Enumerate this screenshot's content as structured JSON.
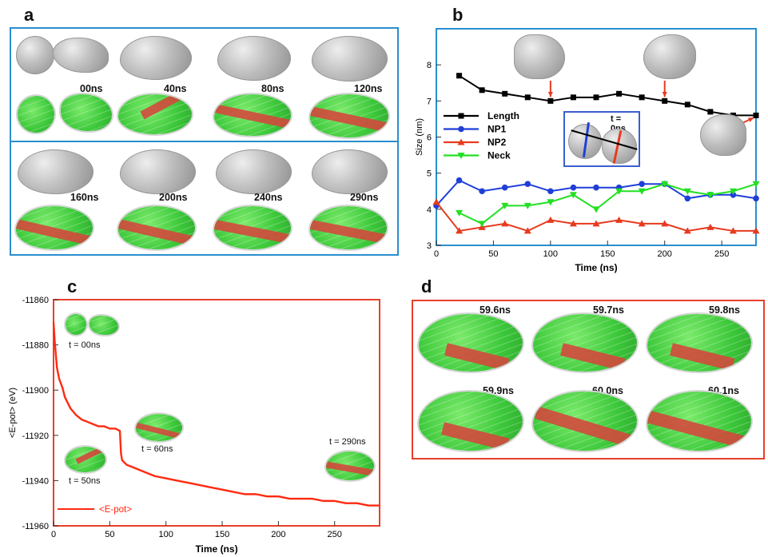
{
  "panels": {
    "a": {
      "label": "a",
      "times_row1": [
        "00ns",
        "40ns",
        "80ns",
        "120ns"
      ],
      "times_row2": [
        "160ns",
        "200ns",
        "240ns",
        "290ns"
      ]
    },
    "b": {
      "label": "b",
      "inset_label": "t = 0ns"
    },
    "c": {
      "label": "c",
      "snapshots": [
        "t = 00ns",
        "t = 50ns",
        "t = 60ns",
        "t = 290ns"
      ]
    },
    "d": {
      "label": "d",
      "times": [
        "59.6ns",
        "59.7ns",
        "59.8ns",
        "59.9ns",
        "60.0ns",
        "60.1ns"
      ]
    }
  },
  "colors": {
    "frame_blue": "#2a8ecf",
    "frame_red": "#e8402a",
    "length": "#000000",
    "np1": "#1f3fd8",
    "np2": "#e83a1e",
    "neck": "#22e022",
    "epot": "#ff2a10",
    "atom_green": "#3cc83a",
    "atom_gray": "#b8b8b8",
    "stacking_fault_red": "#d6463c"
  },
  "chart_data": [
    {
      "type": "line",
      "panel": "b",
      "xlabel": "Time (ns)",
      "ylabel": "Size (nm)",
      "xlim": [
        0,
        280
      ],
      "ylim": [
        3,
        9
      ],
      "xticks": [
        0,
        50,
        100,
        150,
        200,
        250
      ],
      "yticks": [
        3,
        4,
        5,
        6,
        7,
        8
      ],
      "legend_position": "middle-left",
      "series": [
        {
          "name": "Length",
          "color": "#000000",
          "marker": "square",
          "x": [
            20,
            40,
            60,
            80,
            100,
            120,
            140,
            160,
            180,
            200,
            220,
            240,
            260,
            280
          ],
          "y": [
            7.7,
            7.3,
            7.2,
            7.1,
            7.0,
            7.1,
            7.1,
            7.2,
            7.1,
            7.0,
            6.9,
            6.7,
            6.6,
            6.6
          ]
        },
        {
          "name": "NP1",
          "color": "#1f3fd8",
          "marker": "circle",
          "x": [
            0,
            20,
            40,
            60,
            80,
            100,
            120,
            140,
            160,
            180,
            200,
            220,
            240,
            260,
            280
          ],
          "y": [
            4.1,
            4.8,
            4.5,
            4.6,
            4.7,
            4.5,
            4.6,
            4.6,
            4.6,
            4.7,
            4.7,
            4.3,
            4.4,
            4.4,
            4.3
          ]
        },
        {
          "name": "NP2",
          "color": "#e83a1e",
          "marker": "triangle-up",
          "x": [
            0,
            20,
            40,
            60,
            80,
            100,
            120,
            140,
            160,
            180,
            200,
            220,
            240,
            260,
            280
          ],
          "y": [
            4.2,
            3.4,
            3.5,
            3.6,
            3.4,
            3.7,
            3.6,
            3.6,
            3.7,
            3.6,
            3.6,
            3.4,
            3.5,
            3.4,
            3.4
          ]
        },
        {
          "name": "Neck",
          "color": "#22e022",
          "marker": "triangle-down",
          "x": [
            20,
            40,
            60,
            80,
            100,
            120,
            140,
            160,
            180,
            200,
            220,
            240,
            260,
            280
          ],
          "y": [
            3.9,
            3.6,
            4.1,
            4.1,
            4.2,
            4.4,
            4.0,
            4.5,
            4.5,
            4.7,
            4.5,
            4.4,
            4.5,
            4.7
          ]
        }
      ]
    },
    {
      "type": "line",
      "panel": "c",
      "xlabel": "Time (ns)",
      "ylabel": "<E-pot> (eV)",
      "xlim": [
        0,
        290
      ],
      "ylim": [
        -11960,
        -11860
      ],
      "xticks": [
        0,
        50,
        100,
        150,
        200,
        250
      ],
      "yticks": [
        -11860,
        -11880,
        -11900,
        -11920,
        -11940,
        -11960
      ],
      "legend_position": "bottom-left",
      "series": [
        {
          "name": "<E-pot>",
          "color": "#ff2a10",
          "x": [
            0,
            1,
            2,
            3,
            5,
            8,
            10,
            15,
            20,
            25,
            30,
            35,
            40,
            45,
            50,
            55,
            59,
            60,
            61,
            65,
            70,
            80,
            90,
            100,
            110,
            120,
            130,
            140,
            150,
            160,
            170,
            180,
            190,
            200,
            210,
            220,
            230,
            240,
            250,
            260,
            270,
            280,
            290
          ],
          "y": [
            -11870,
            -11878,
            -11884,
            -11890,
            -11895,
            -11899,
            -11903,
            -11908,
            -11911,
            -11913,
            -11914,
            -11915,
            -11916,
            -11916,
            -11917,
            -11917,
            -11918,
            -11928,
            -11931,
            -11933,
            -11934,
            -11936,
            -11938,
            -11939,
            -11940,
            -11941,
            -11942,
            -11943,
            -11944,
            -11945,
            -11946,
            -11946,
            -11947,
            -11947,
            -11948,
            -11948,
            -11948,
            -11949,
            -11949,
            -11950,
            -11950,
            -11951,
            -11951
          ]
        }
      ]
    }
  ]
}
